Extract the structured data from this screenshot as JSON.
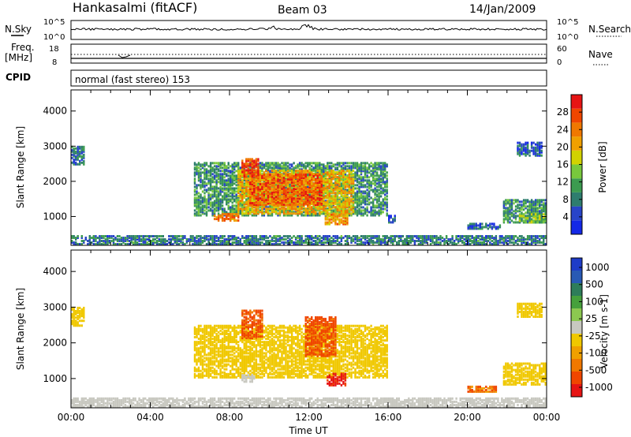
{
  "header": {
    "station": "Hankasalmi (fitACF)",
    "beam": "Beam 03",
    "date": "14/Jan/2009"
  },
  "nsky_panel": {
    "left_label": "N.Sky",
    "left_ticks": [
      "10^5",
      "10^0"
    ],
    "right_label": "N.Search",
    "right_ticks": [
      "10^5",
      "10^0"
    ]
  },
  "freq_panel": {
    "left_label_1": "Freq.",
    "left_label_2": "[MHz]",
    "left_ticks": [
      "18",
      "8"
    ],
    "right_label": "Nave",
    "right_ticks": [
      "60",
      "0"
    ]
  },
  "cpid": {
    "label": "CPID",
    "value": "normal (fast stereo) 153"
  },
  "colors": {
    "power_scale": [
      "#1428e6",
      "#2844c8",
      "#2e7d6e",
      "#3c9b50",
      "#78c83c",
      "#d2d200",
      "#f0a000",
      "#f07800",
      "#f04600",
      "#e61414"
    ],
    "velocity_scale": [
      "#1e3cc8",
      "#285ab4",
      "#2e7d5a",
      "#46a03c",
      "#8cc850",
      "#c8c8c0",
      "#f0c800",
      "#f0a000",
      "#f07800",
      "#f04600",
      "#e61414"
    ]
  },
  "chart_data": [
    {
      "type": "heatmap",
      "panel": "power",
      "ylabel": "Slant Range [km]",
      "yticks": [
        "1000",
        "2000",
        "3000",
        "4000"
      ],
      "ylim": [
        180,
        4600
      ],
      "xlim_hours": [
        0,
        24
      ],
      "colorbar_label": "Power [dB]",
      "colorbar_ticks": [
        "4",
        "8",
        "12",
        "16",
        "20",
        "24",
        "28"
      ],
      "colorbar_range": [
        0,
        32
      ],
      "regions": [
        {
          "t0": 6.2,
          "t1": 15.9,
          "r0": 1000,
          "r1": 2500,
          "v": 10
        },
        {
          "t0": 8.4,
          "t1": 14.2,
          "r0": 1050,
          "r1": 2300,
          "v": 20
        },
        {
          "t0": 9.0,
          "t1": 12.6,
          "r0": 1300,
          "r1": 2200,
          "v": 26
        },
        {
          "t0": 8.6,
          "t1": 9.4,
          "r0": 2100,
          "r1": 2600,
          "v": 28
        },
        {
          "t0": 12.8,
          "t1": 13.9,
          "r0": 750,
          "r1": 1050,
          "v": 22
        },
        {
          "t0": 7.2,
          "t1": 8.4,
          "r0": 850,
          "r1": 1050,
          "v": 24
        },
        {
          "t0": 0.0,
          "t1": 0.7,
          "r0": 2450,
          "r1": 2950,
          "v": 8
        },
        {
          "t0": 21.8,
          "t1": 24.0,
          "r0": 800,
          "r1": 1450,
          "v": 10
        },
        {
          "t0": 22.6,
          "t1": 24.0,
          "r0": 800,
          "r1": 1050,
          "v": 14
        },
        {
          "t0": 22.5,
          "t1": 23.8,
          "r0": 2700,
          "r1": 3100,
          "v": 6
        },
        {
          "t0": 20.0,
          "t1": 21.7,
          "r0": 620,
          "r1": 760,
          "v": 6
        },
        {
          "t0": 16.0,
          "t1": 16.4,
          "r0": 800,
          "r1": 1000,
          "v": 6
        },
        {
          "t0": 0.0,
          "t1": 24.0,
          "r0": 180,
          "r1": 450,
          "v": 8
        }
      ]
    },
    {
      "type": "heatmap",
      "panel": "velocity",
      "ylabel": "Slant Range [km]",
      "yticks": [
        "1000",
        "2000",
        "3000",
        "4000"
      ],
      "ylim": [
        180,
        4600
      ],
      "xlim_hours": [
        0,
        24
      ],
      "xticks": [
        "00:00",
        "04:00",
        "08:00",
        "12:00",
        "16:00",
        "20:00",
        "00:00"
      ],
      "xlabel": "Time UT",
      "colorbar_label": "Velocity [m s-1]",
      "colorbar_ticks": [
        "1000",
        "500",
        "100",
        "25",
        "-25",
        "-100",
        "-500",
        "-1000"
      ],
      "colorbar_range": [
        -1000,
        1000
      ],
      "regions": [
        {
          "t0": 6.2,
          "t1": 15.9,
          "r0": 1000,
          "r1": 2450,
          "v": 0
        },
        {
          "t0": 8.6,
          "t1": 9.6,
          "r0": 2100,
          "r1": 2900,
          "v": -300
        },
        {
          "t0": 11.8,
          "t1": 13.3,
          "r0": 1600,
          "r1": 2700,
          "v": -300
        },
        {
          "t0": 12.9,
          "t1": 13.8,
          "r0": 780,
          "r1": 1100,
          "v": -600
        },
        {
          "t0": 8.6,
          "t1": 9.2,
          "r0": 880,
          "r1": 1100,
          "v": 80
        },
        {
          "t0": 21.8,
          "t1": 24.0,
          "r0": 800,
          "r1": 1400,
          "v": 0
        },
        {
          "t0": 20.0,
          "t1": 21.5,
          "r0": 600,
          "r1": 760,
          "v": -200
        },
        {
          "t0": 0.0,
          "t1": 0.7,
          "r0": 2450,
          "r1": 2950,
          "v": 0
        },
        {
          "t0": 22.5,
          "t1": 23.8,
          "r0": 2700,
          "r1": 3100,
          "v": 0
        },
        {
          "t0": 0.0,
          "t1": 24.0,
          "r0": 180,
          "r1": 450,
          "v": 80
        }
      ]
    }
  ]
}
